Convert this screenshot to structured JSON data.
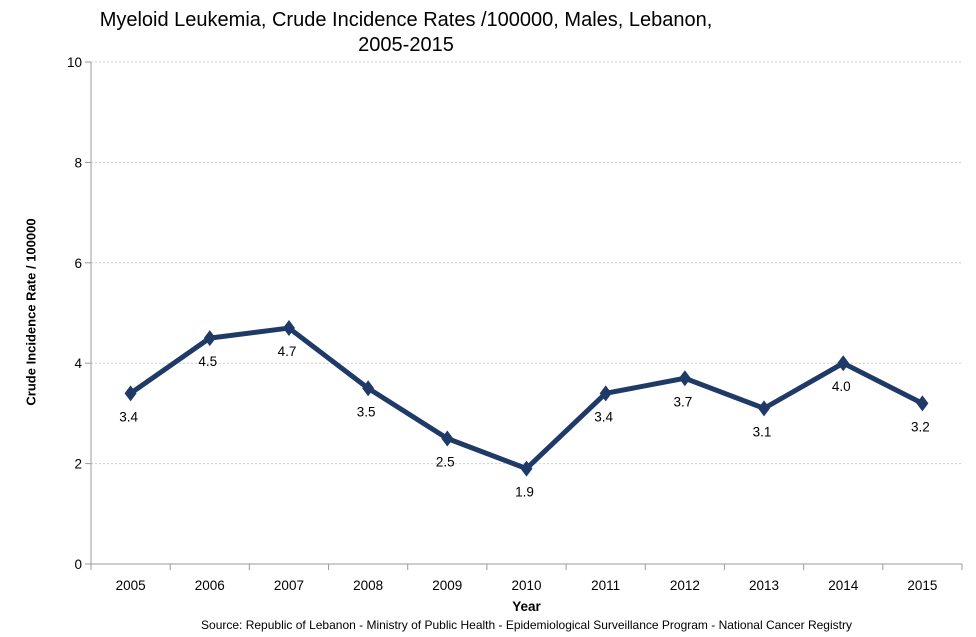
{
  "title": {
    "line1": "Myeloid Leukemia, Crude Incidence Rates /100000, Males, Lebanon,",
    "line2": "2005-2015"
  },
  "axes": {
    "y_title": "Crude Incidence Rate / 100000",
    "x_title": "Year"
  },
  "source_note": "Source: Republic of Lebanon - Ministry of Public Health - Epidemiological Surveillance Program - National Cancer Registry",
  "chart_data": {
    "type": "line",
    "title": "Myeloid Leukemia, Crude Incidence Rates /100000, Males, Lebanon, 2005-2015",
    "categories": [
      "2005",
      "2006",
      "2007",
      "2008",
      "2009",
      "2010",
      "2011",
      "2012",
      "2013",
      "2014",
      "2015"
    ],
    "series": [
      {
        "name": "Crude Incidence Rate",
        "values": [
          3.4,
          4.5,
          4.7,
          3.5,
          2.5,
          1.9,
          3.4,
          3.7,
          3.1,
          4.0,
          3.2
        ],
        "point_labels": [
          "3.4",
          "4.5",
          "4.7",
          "3.5",
          "2.5",
          "1.9",
          "3.4",
          "3.7",
          "3.1",
          "4.0",
          "3.2"
        ]
      }
    ],
    "xlabel": "Year",
    "ylabel": "Crude Incidence Rate / 100000",
    "ylim": [
      0,
      10
    ],
    "yticks": [
      0,
      2,
      4,
      6,
      8,
      10
    ],
    "grid": "horizontal dotted",
    "legend": "none",
    "marker": "diamond",
    "colors": {
      "line": "#1f3a67",
      "marker": "#1f3a67",
      "label_text": "#000000",
      "grid": "#cdcdcd",
      "axis": "#9b9b9b"
    }
  }
}
